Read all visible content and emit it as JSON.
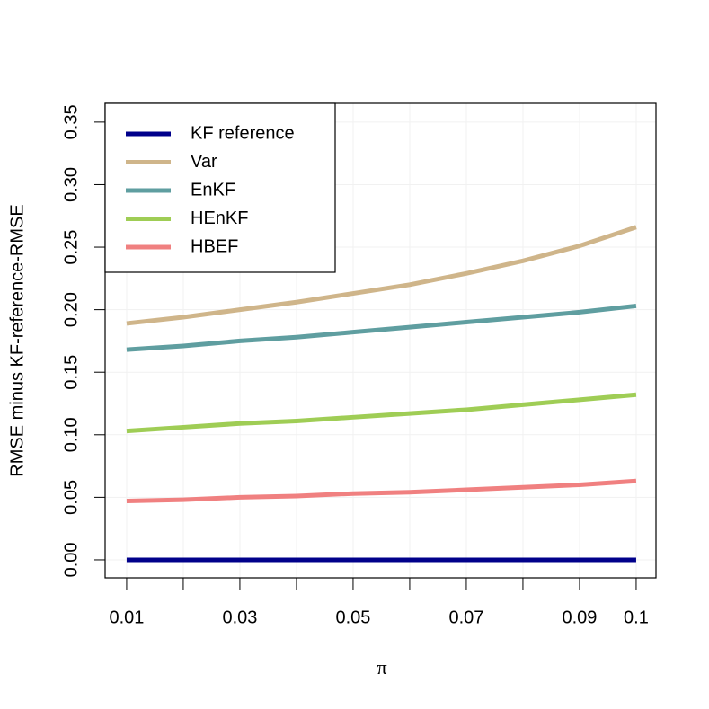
{
  "chart_data": {
    "type": "line",
    "x_label": "π",
    "y_label": "RMSE minus KF-reference-RMSE",
    "x": [
      0.01,
      0.02,
      0.03,
      0.04,
      0.05,
      0.06,
      0.07,
      0.08,
      0.09,
      0.1
    ],
    "series": [
      {
        "name": "KF reference",
        "color": "#00008b",
        "values": [
          0,
          0,
          0,
          0,
          0,
          0,
          0,
          0,
          0,
          0
        ]
      },
      {
        "name": "Var",
        "color": "#cfb58a",
        "values": [
          0.189,
          0.194,
          0.2,
          0.206,
          0.213,
          0.22,
          0.229,
          0.239,
          0.251,
          0.266
        ]
      },
      {
        "name": "EnKF",
        "color": "#5f9ea0",
        "values": [
          0.168,
          0.171,
          0.175,
          0.178,
          0.182,
          0.186,
          0.19,
          0.194,
          0.198,
          0.203
        ]
      },
      {
        "name": "HEnKF",
        "color": "#9fcd55",
        "values": [
          0.103,
          0.106,
          0.109,
          0.111,
          0.114,
          0.117,
          0.12,
          0.124,
          0.128,
          0.132
        ]
      },
      {
        "name": "HBEF",
        "color": "#f08080",
        "values": [
          0.047,
          0.048,
          0.05,
          0.051,
          0.053,
          0.054,
          0.056,
          0.058,
          0.06,
          0.063
        ]
      }
    ],
    "xlim": [
      0.0062,
      0.1035
    ],
    "ylim": [
      -0.0144,
      0.365
    ],
    "xticks": [
      0.01,
      0.03,
      0.05,
      0.07,
      0.09,
      0.1
    ],
    "xticks_unlabeled": [
      0.02,
      0.04,
      0.06,
      0.08
    ],
    "yticks": [
      {
        "value": 0,
        "label": "0.00"
      },
      {
        "value": 0.05,
        "label": "0.05"
      },
      {
        "value": 0.1,
        "label": "0.10"
      },
      {
        "value": 0.15,
        "label": "0.15"
      },
      {
        "value": 0.2,
        "label": "0.20"
      },
      {
        "value": 0.25,
        "label": "0.25"
      },
      {
        "value": 0.3,
        "label": "0.30"
      },
      {
        "value": 0.35,
        "label": "0.35"
      }
    ],
    "grid": true,
    "legend": "topleft"
  }
}
